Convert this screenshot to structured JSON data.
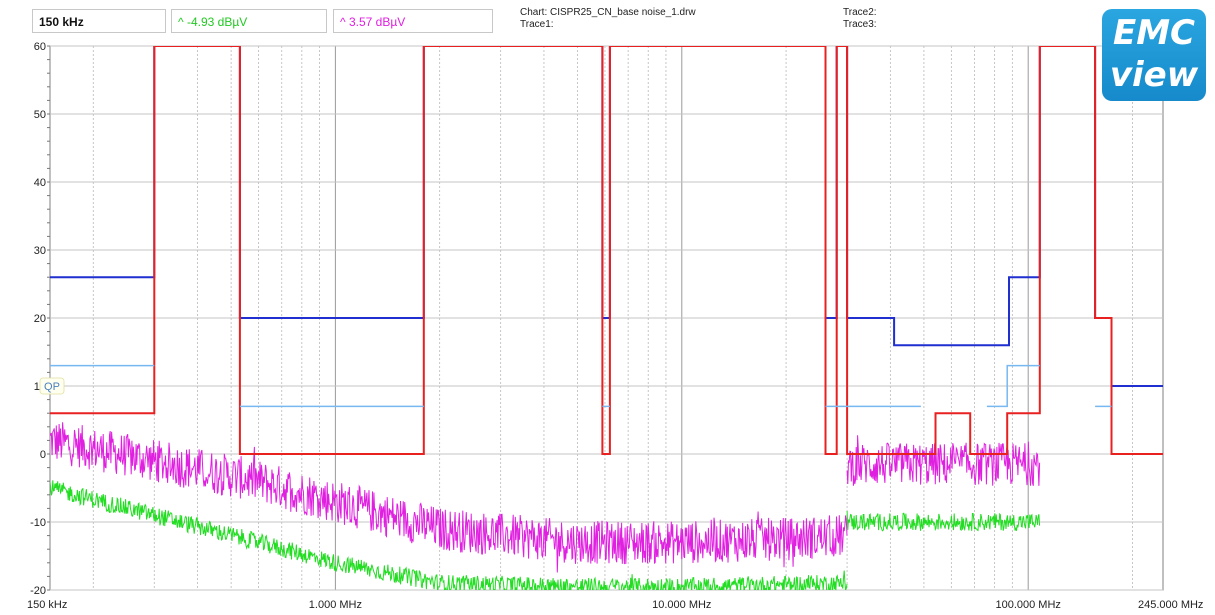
{
  "header": {
    "marker_freq": "150 kHz",
    "delta_green": "^ -4.93 dBµV",
    "delta_magenta": "^ 3.57 dBµV",
    "chart_line": "Chart: CISPR25_CN_base noise_1.drw",
    "trace1_line": "Trace1:",
    "trace2_line": "Trace2:",
    "trace3_line": "Trace3:",
    "logo_top": "EMC",
    "logo_bottom": "view",
    "colors": {
      "green": "#22c922",
      "magenta": "#e020e0"
    }
  },
  "chart_data": {
    "type": "line",
    "xscale": "log",
    "xlim_hz": [
      150000,
      245000000
    ],
    "ylim": [
      -20,
      60
    ],
    "grid": true,
    "x_tick_labels": [
      {
        "hz": 150000,
        "label": "150 kHz"
      },
      {
        "hz": 1000000,
        "label": "1.000 MHz"
      },
      {
        "hz": 10000000,
        "label": "10.000 MHz"
      },
      {
        "hz": 100000000,
        "label": "100.000 MHz"
      },
      {
        "hz": 245000000,
        "label": "245.000 MHz"
      }
    ],
    "y_ticks": [
      60,
      50,
      40,
      30,
      20,
      10,
      0,
      -10,
      -20
    ],
    "marker_label": "QP",
    "limit_lines": [
      {
        "name": "peak_limit",
        "color": "#1f2fd0",
        "points": [
          [
            150000,
            26
          ],
          [
            300000,
            26
          ],
          [
            300000,
            60
          ],
          [
            530000,
            60
          ],
          [
            530000,
            20
          ],
          [
            1800000,
            20
          ],
          [
            1800000,
            60
          ],
          [
            5900000,
            60
          ],
          [
            5900000,
            20
          ],
          [
            6200000,
            20
          ],
          [
            6200000,
            60
          ],
          [
            26000000,
            60
          ],
          [
            26000000,
            20
          ],
          [
            28000000,
            20
          ],
          [
            28000000,
            60
          ],
          [
            30000000,
            60
          ],
          [
            30000000,
            20
          ],
          [
            41000000,
            20
          ],
          [
            41000000,
            16
          ],
          [
            88000000,
            16
          ],
          [
            88000000,
            26
          ],
          [
            108000000,
            26
          ],
          [
            108000000,
            60
          ],
          [
            156000000,
            60
          ],
          [
            156000000,
            20
          ],
          [
            174000000,
            20
          ],
          [
            174000000,
            10
          ],
          [
            245000000,
            10
          ]
        ]
      },
      {
        "name": "avg_limit",
        "color": "#e82020",
        "points": [
          [
            150000,
            6
          ],
          [
            300000,
            6
          ],
          [
            300000,
            26
          ],
          [
            300000,
            60
          ],
          [
            530000,
            60
          ],
          [
            530000,
            0
          ],
          [
            1800000,
            0
          ],
          [
            1800000,
            60
          ],
          [
            5900000,
            60
          ],
          [
            5900000,
            0
          ],
          [
            6200000,
            0
          ],
          [
            6200000,
            20
          ],
          [
            6200000,
            60
          ],
          [
            26000000,
            60
          ],
          [
            26000000,
            0
          ],
          [
            28000000,
            0
          ],
          [
            28000000,
            20
          ],
          [
            28000000,
            60
          ],
          [
            30000000,
            60
          ],
          [
            30000000,
            0
          ],
          [
            54000000,
            0
          ],
          [
            54000000,
            6
          ],
          [
            68000000,
            6
          ],
          [
            68000000,
            0
          ],
          [
            87000000,
            0
          ],
          [
            87000000,
            6
          ],
          [
            108000000,
            6
          ],
          [
            108000000,
            26
          ],
          [
            108000000,
            60
          ],
          [
            156000000,
            60
          ],
          [
            156000000,
            20
          ],
          [
            174000000,
            20
          ],
          [
            174000000,
            0
          ],
          [
            245000000,
            0
          ]
        ]
      },
      {
        "name": "qp_limit",
        "color": "#78b8f0",
        "segments": [
          [
            [
              150000,
              13
            ],
            [
              300000,
              13
            ]
          ],
          [
            [
              530000,
              7
            ],
            [
              1800000,
              7
            ]
          ],
          [
            [
              5900000,
              7
            ],
            [
              6200000,
              7
            ]
          ],
          [
            [
              26000000,
              7
            ],
            [
              49000000,
              7
            ]
          ],
          [
            [
              76000000,
              7
            ],
            [
              87000000,
              7
            ],
            [
              87000000,
              13
            ],
            [
              108000000,
              13
            ]
          ],
          [
            [
              156000000,
              7
            ],
            [
              174000000,
              7
            ]
          ]
        ]
      }
    ],
    "series": [
      {
        "name": "magenta",
        "color": "#e020e0",
        "noise": 3.2,
        "points": [
          [
            150000,
            2
          ],
          [
            300000,
            -1
          ],
          [
            600000,
            -4
          ],
          [
            1000000,
            -7
          ],
          [
            2000000,
            -11
          ],
          [
            5000000,
            -13
          ],
          [
            10000000,
            -13
          ],
          [
            20000000,
            -12.5
          ],
          [
            30000000,
            -12
          ],
          [
            30000000,
            -1.5
          ],
          [
            108000000,
            -1.5
          ]
        ]
      },
      {
        "name": "green",
        "color": "#22dd22",
        "noise": 1.3,
        "points": [
          [
            150000,
            -5
          ],
          [
            300000,
            -9
          ],
          [
            600000,
            -13
          ],
          [
            1000000,
            -16
          ],
          [
            2000000,
            -19
          ],
          [
            5000000,
            -19.5
          ],
          [
            10000000,
            -19.5
          ],
          [
            30000000,
            -19
          ],
          [
            30000000,
            -10
          ],
          [
            108000000,
            -10
          ]
        ]
      }
    ]
  }
}
